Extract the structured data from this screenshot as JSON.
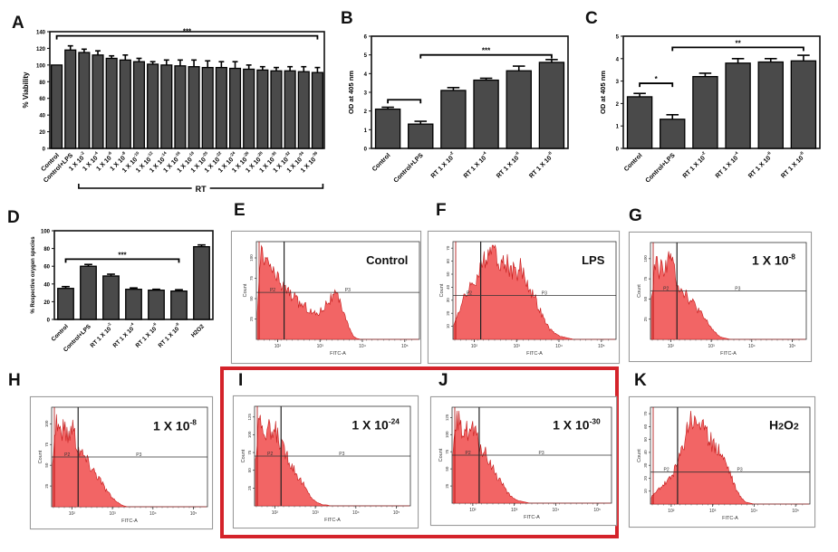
{
  "figure": {
    "panels": [
      "A",
      "B",
      "C",
      "D",
      "E",
      "F",
      "G",
      "H",
      "I",
      "J",
      "K"
    ],
    "highlight_color": "#d4232a",
    "bar_color": "#4a4a4a",
    "hist_fill": "#f26565",
    "hist_edge": "#c41a1a"
  },
  "chart_data": [
    {
      "panel": "A",
      "type": "bar",
      "title": "",
      "xlabel": "",
      "ylabel": "% Viability",
      "ylim": [
        0,
        140
      ],
      "yticks": [
        "0",
        "20",
        "40",
        "60",
        "80",
        "100",
        "120",
        "140"
      ],
      "categories": [
        "Control",
        "Control+LPS",
        "1 X 10-2",
        "1 X 10-4",
        "1 X 10-6",
        "1 X 10-8",
        "1 X 10-10",
        "1 X 10-12",
        "1 X 10-14",
        "1 X 10-16",
        "1 X 10-18",
        "1 X 10-20",
        "1 X 10-22",
        "1 X 10-24",
        "1 X 10-26",
        "1 X 10-28",
        "1 X 10-30",
        "1 X 10-32",
        "1 X 10-34",
        "1 X 10-36"
      ],
      "category_labels": [
        {
          "base": "Control",
          "exp": ""
        },
        {
          "base": "Control+LPS",
          "exp": ""
        },
        {
          "base": "1 X 10",
          "exp": "-2"
        },
        {
          "base": "1 X 10",
          "exp": "-4"
        },
        {
          "base": "1 X 10",
          "exp": "-6"
        },
        {
          "base": "1 X 10",
          "exp": "-8"
        },
        {
          "base": "1 X 10",
          "exp": "-10"
        },
        {
          "base": "1 X 10",
          "exp": "-12"
        },
        {
          "base": "1 X 10",
          "exp": "-14"
        },
        {
          "base": "1 X 10",
          "exp": "-16"
        },
        {
          "base": "1 X 10",
          "exp": "-18"
        },
        {
          "base": "1 X 10",
          "exp": "-20"
        },
        {
          "base": "1 X 10",
          "exp": "-22"
        },
        {
          "base": "1 X 10",
          "exp": "-24"
        },
        {
          "base": "1 X 10",
          "exp": "-26"
        },
        {
          "base": "1 X 10",
          "exp": "-28"
        },
        {
          "base": "1 X 10",
          "exp": "-30"
        },
        {
          "base": "1 X 10",
          "exp": "-32"
        },
        {
          "base": "1 X 10",
          "exp": "-34"
        },
        {
          "base": "1 X 10",
          "exp": "-36"
        }
      ],
      "values": [
        100,
        118,
        115,
        112,
        108,
        106,
        104,
        101,
        100,
        99,
        98,
        97,
        97,
        96,
        95,
        94,
        93,
        93,
        92,
        91
      ],
      "errors": [
        0,
        5,
        4,
        5,
        3,
        6,
        4,
        3,
        6,
        7,
        8,
        8,
        7,
        8,
        5,
        4,
        4,
        5,
        6,
        6
      ],
      "group_bracket": {
        "label": "RT",
        "from": 2,
        "to": 19
      },
      "significance": [
        {
          "label": "***",
          "from": 0,
          "to": 19
        }
      ]
    },
    {
      "panel": "B",
      "type": "bar",
      "ylabel": "OD at 405 nm",
      "ylim": [
        0,
        6
      ],
      "yticks": [
        "0",
        "1",
        "2",
        "3",
        "4",
        "5",
        "6"
      ],
      "category_labels": [
        {
          "base": "Control",
          "exp": ""
        },
        {
          "base": "Control+LPS",
          "exp": ""
        },
        {
          "base": "RT 1 X 10",
          "exp": "-2"
        },
        {
          "base": "RT 1 X 10",
          "exp": "-4"
        },
        {
          "base": "RT 1 X 10",
          "exp": "-6"
        },
        {
          "base": "RT 1 X 10",
          "exp": "-8"
        }
      ],
      "values": [
        2.1,
        1.3,
        3.1,
        3.65,
        4.15,
        4.6
      ],
      "errors": [
        0.1,
        0.15,
        0.15,
        0.1,
        0.25,
        0.15
      ],
      "significance": [
        {
          "label": "",
          "from": 0,
          "to": 1
        },
        {
          "label": "***",
          "from": 1,
          "to": 5
        }
      ]
    },
    {
      "panel": "C",
      "type": "bar",
      "ylabel": "OD at 405 nm",
      "ylim": [
        0,
        5
      ],
      "yticks": [
        "0",
        "1",
        "2",
        "3",
        "4",
        "5"
      ],
      "category_labels": [
        {
          "base": "Control",
          "exp": ""
        },
        {
          "base": "Control+LPS",
          "exp": ""
        },
        {
          "base": "RT 1 X 10",
          "exp": "-2"
        },
        {
          "base": "RT 1 X 10",
          "exp": "-4"
        },
        {
          "base": "RT 1 X 10",
          "exp": "-6"
        },
        {
          "base": "RT 1 X 10",
          "exp": "-8"
        }
      ],
      "values": [
        2.3,
        1.3,
        3.2,
        3.8,
        3.85,
        3.9
      ],
      "errors": [
        0.15,
        0.2,
        0.15,
        0.2,
        0.15,
        0.25
      ],
      "significance": [
        {
          "label": "*",
          "from": 0,
          "to": 1
        },
        {
          "label": "**",
          "from": 1,
          "to": 5
        }
      ]
    },
    {
      "panel": "D",
      "type": "bar",
      "ylabel": "% Respective oxygen species",
      "ylim": [
        0,
        100
      ],
      "yticks": [
        "0",
        "20",
        "40",
        "60",
        "80",
        "100"
      ],
      "category_labels": [
        {
          "base": "Control",
          "exp": ""
        },
        {
          "base": "Control+LPS",
          "exp": ""
        },
        {
          "base": "RT 1 X 10",
          "exp": "-2"
        },
        {
          "base": "RT 1 X 10",
          "exp": "-4"
        },
        {
          "base": "RT 1 X 10",
          "exp": "-6"
        },
        {
          "base": "RT 1 X 10",
          "exp": "-8"
        },
        {
          "base": "H2O2",
          "exp": ""
        }
      ],
      "values": [
        35,
        60,
        49,
        34,
        33,
        32,
        82
      ],
      "errors": [
        2,
        2,
        2,
        1.5,
        1,
        1.5,
        2
      ],
      "significance": [
        {
          "label": "***",
          "from": 0,
          "to": 5
        }
      ]
    },
    {
      "panel": "E",
      "type": "area",
      "label": "Control",
      "label_sup": "",
      "xlabel": "FITC-A",
      "ylabel": "Count",
      "gate_left": "P2",
      "gate_right": "P3",
      "xticks": [
        "10²",
        "10³",
        "10⁴",
        "10⁵"
      ],
      "yticks": [
        "25",
        "50",
        "75",
        "100"
      ],
      "ymax": 120,
      "gate_level": 0.48,
      "profile": [
        0.3,
        0.95,
        0.8,
        0.85,
        0.7,
        0.65,
        0.6,
        0.55,
        0.5,
        0.45,
        0.4,
        0.38,
        0.35,
        0.3,
        0.28,
        0.3,
        0.35,
        0.42,
        0.45,
        0.48,
        0.4,
        0.3,
        0.15,
        0.05,
        0.01,
        0,
        0,
        0,
        0,
        0,
        0,
        0,
        0,
        0,
        0,
        0,
        0,
        0,
        0,
        0
      ]
    },
    {
      "panel": "F",
      "type": "area",
      "label": "LPS",
      "label_sup": "",
      "xlabel": "FITC-A",
      "ylabel": "Count",
      "gate_left": "P2",
      "gate_right": "P3",
      "xticks": [
        "10²",
        "10³",
        "10⁴",
        "10⁵"
      ],
      "yticks": [
        "10",
        "20",
        "30",
        "40",
        "50",
        "60",
        "70"
      ],
      "ymax": 75,
      "gate_level": 0.45,
      "profile": [
        0.15,
        0.3,
        0.4,
        0.5,
        0.55,
        0.65,
        0.72,
        0.8,
        0.95,
        1.0,
        0.95,
        0.9,
        0.82,
        0.85,
        0.75,
        0.72,
        0.8,
        0.7,
        0.6,
        0.5,
        0.4,
        0.3,
        0.2,
        0.12,
        0.08,
        0.05,
        0.03,
        0.02,
        0.01,
        0,
        0,
        0,
        0,
        0,
        0,
        0,
        0,
        0,
        0,
        0
      ]
    },
    {
      "panel": "G",
      "type": "area",
      "label": "1 X 10",
      "label_sup": "-8",
      "xlabel": "FITC-A",
      "ylabel": "Count",
      "gate_left": "P2",
      "gate_right": "P3",
      "xticks": [
        "10²",
        "10³",
        "10⁴",
        "10⁵"
      ],
      "yticks": [
        "25",
        "50",
        "75",
        "100"
      ],
      "ymax": 120,
      "gate_level": 0.5,
      "profile": [
        0.4,
        0.9,
        0.75,
        0.8,
        0.85,
        0.9,
        0.75,
        0.6,
        0.55,
        0.5,
        0.42,
        0.38,
        0.32,
        0.25,
        0.2,
        0.14,
        0.08,
        0.04,
        0.02,
        0.01,
        0,
        0,
        0,
        0,
        0,
        0,
        0,
        0,
        0,
        0,
        0,
        0,
        0,
        0,
        0,
        0,
        0,
        0,
        0,
        0
      ]
    },
    {
      "panel": "H",
      "type": "area",
      "label": "1 X 10",
      "label_sup": "-8",
      "xlabel": "FITC-A",
      "ylabel": "Count",
      "gate_left": "P2",
      "gate_right": "P3",
      "xticks": [
        "10²",
        "10³",
        "10⁴",
        "10⁵"
      ],
      "yticks": [
        "25",
        "50",
        "75",
        "100"
      ],
      "ymax": 120,
      "gate_level": 0.5,
      "profile": [
        0.5,
        0.95,
        0.8,
        0.85,
        0.75,
        0.9,
        0.7,
        0.6,
        0.55,
        0.48,
        0.42,
        0.36,
        0.3,
        0.22,
        0.16,
        0.1,
        0.06,
        0.03,
        0.01,
        0,
        0,
        0,
        0,
        0,
        0,
        0,
        0,
        0,
        0,
        0,
        0,
        0,
        0,
        0,
        0,
        0,
        0,
        0,
        0,
        0
      ]
    },
    {
      "panel": "I",
      "type": "area",
      "label": "1 X 10",
      "label_sup": "-24",
      "xlabel": "FITC-A",
      "ylabel": "Count",
      "gate_left": "P2",
      "gate_right": "P3",
      "xticks": [
        "10²",
        "10³",
        "10⁴",
        "10⁵"
      ],
      "yticks": [
        "25",
        "50",
        "75",
        "100",
        "125"
      ],
      "ymax": 140,
      "gate_level": 0.5,
      "profile": [
        0.5,
        1.0,
        0.8,
        0.85,
        0.75,
        0.8,
        0.72,
        0.6,
        0.55,
        0.45,
        0.38,
        0.3,
        0.24,
        0.16,
        0.1,
        0.05,
        0.03,
        0.01,
        0.01,
        0,
        0,
        0,
        0,
        0,
        0,
        0,
        0,
        0,
        0,
        0,
        0,
        0,
        0,
        0,
        0,
        0,
        0,
        0,
        0,
        0
      ]
    },
    {
      "panel": "J",
      "type": "area",
      "label": "1 X 10",
      "label_sup": "-30",
      "xlabel": "FITC-A",
      "ylabel": "Count",
      "gate_left": "P2",
      "gate_right": "P3",
      "xticks": [
        "10²",
        "10³",
        "10⁴",
        "10⁵"
      ],
      "yticks": [
        "25",
        "50",
        "75",
        "100",
        "125"
      ],
      "ymax": 140,
      "gate_level": 0.5,
      "profile": [
        0.5,
        1.0,
        0.8,
        0.85,
        0.78,
        0.82,
        0.7,
        0.6,
        0.55,
        0.45,
        0.38,
        0.3,
        0.24,
        0.15,
        0.09,
        0.05,
        0.03,
        0.02,
        0.01,
        0,
        0,
        0,
        0,
        0,
        0,
        0,
        0,
        0,
        0,
        0,
        0,
        0,
        0,
        0,
        0,
        0,
        0,
        0,
        0,
        0
      ]
    },
    {
      "panel": "K",
      "type": "area",
      "label": "H2O2",
      "label_sup": "",
      "xlabel": "FITC-A",
      "ylabel": "Count",
      "gate_left": "P2",
      "gate_right": "P3",
      "xticks": [
        "10²",
        "10³",
        "10⁴",
        "10⁵"
      ],
      "yticks": [
        "10",
        "20",
        "30",
        "40",
        "50",
        "60",
        "70"
      ],
      "ymax": 75,
      "gate_level": 0.33,
      "profile": [
        0.08,
        0.12,
        0.18,
        0.22,
        0.25,
        0.3,
        0.38,
        0.5,
        0.65,
        0.85,
        1.0,
        0.9,
        0.95,
        0.85,
        0.75,
        0.7,
        0.65,
        0.62,
        0.55,
        0.45,
        0.35,
        0.22,
        0.12,
        0.06,
        0.02,
        0.01,
        0,
        0,
        0,
        0,
        0,
        0,
        0,
        0,
        0,
        0,
        0,
        0,
        0,
        0,
        0
      ]
    }
  ]
}
